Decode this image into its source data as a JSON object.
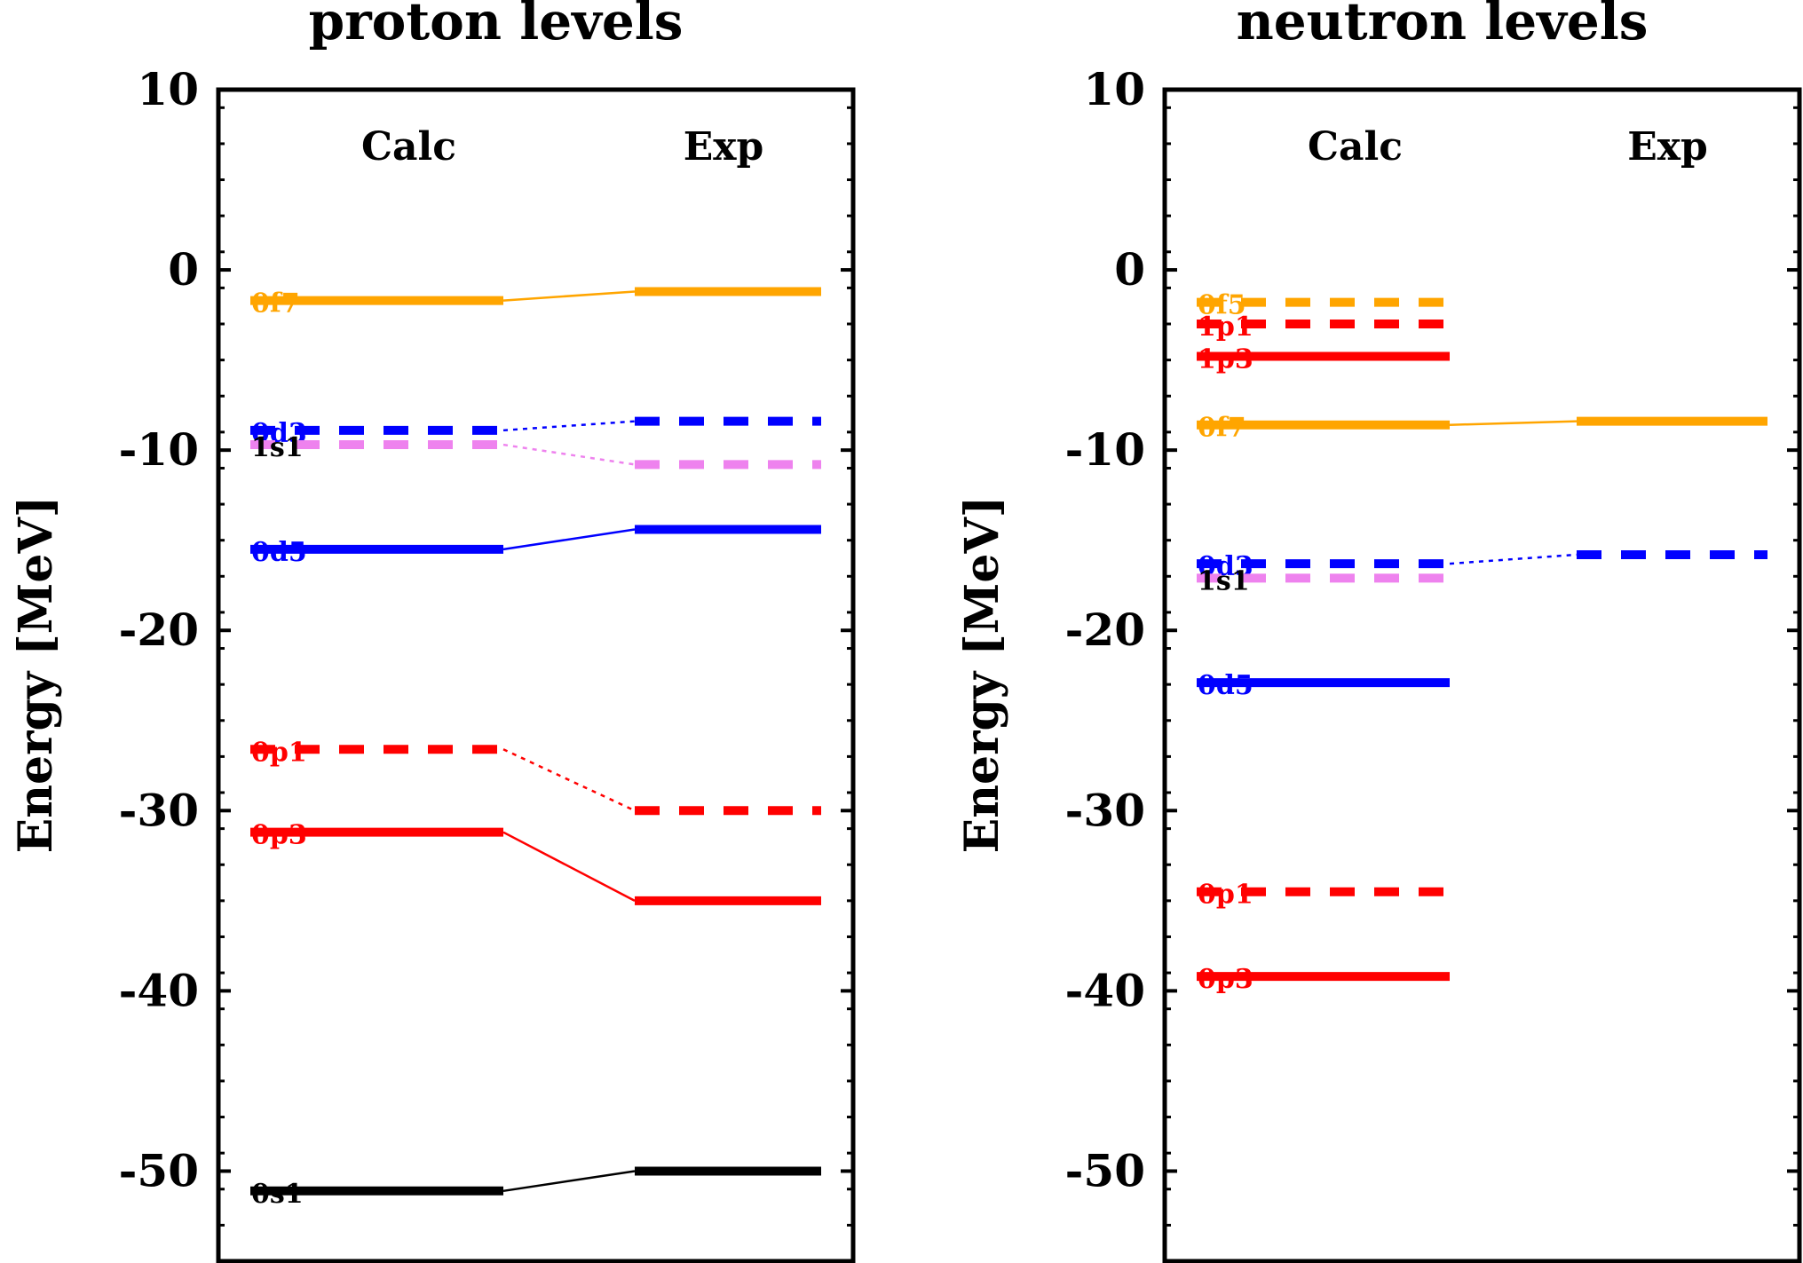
{
  "chart_data": [
    {
      "type": "level-scheme",
      "title": "proton levels",
      "ylabel": "Energy [MeV]",
      "ylim": [
        -55,
        10
      ],
      "yticks": [
        10,
        0,
        -10,
        -20,
        -30,
        -40,
        -50
      ],
      "columns": [
        "Calc",
        "Exp"
      ],
      "levels": [
        {
          "label": "0f7",
          "calc": -1.7,
          "exp": -1.2,
          "color": "#ffa500",
          "style": "solid"
        },
        {
          "label": "0d3",
          "calc": -8.9,
          "exp": -8.4,
          "color": "#0000ff",
          "style": "dashed"
        },
        {
          "label": "1s1",
          "calc": -9.7,
          "exp": -10.8,
          "color": "#ee82ee",
          "style": "dashed",
          "label_color": "#000000"
        },
        {
          "label": "0d5",
          "calc": -15.5,
          "exp": -14.4,
          "color": "#0000ff",
          "style": "solid"
        },
        {
          "label": "0p1",
          "calc": -26.6,
          "exp": -30.0,
          "color": "#ff0000",
          "style": "dashed"
        },
        {
          "label": "0p3",
          "calc": -31.2,
          "exp": -35.0,
          "color": "#ff0000",
          "style": "solid"
        },
        {
          "label": "0s1",
          "calc": -51.1,
          "exp": -50.0,
          "color": "#000000",
          "style": "solid"
        }
      ]
    },
    {
      "type": "level-scheme",
      "title": "neutron levels",
      "ylabel": "Energy [MeV]",
      "ylim": [
        -55,
        10
      ],
      "yticks": [
        10,
        0,
        -10,
        -20,
        -30,
        -40,
        -50
      ],
      "columns": [
        "Calc",
        "Exp"
      ],
      "levels": [
        {
          "label": "0f5",
          "calc": -1.8,
          "exp": null,
          "color": "#ffa500",
          "style": "dashed"
        },
        {
          "label": "1p1",
          "calc": -3.0,
          "exp": null,
          "color": "#ff0000",
          "style": "dashed"
        },
        {
          "label": "1p3",
          "calc": -4.8,
          "exp": null,
          "color": "#ff0000",
          "style": "solid"
        },
        {
          "label": "0f7",
          "calc": -8.6,
          "exp": -8.4,
          "color": "#ffa500",
          "style": "solid"
        },
        {
          "label": "0d3",
          "calc": -16.3,
          "exp": -15.8,
          "color": "#0000ff",
          "style": "dashed"
        },
        {
          "label": "1s1",
          "calc": -17.1,
          "exp": null,
          "color": "#ee82ee",
          "style": "dashed",
          "label_color": "#000000"
        },
        {
          "label": "0d5",
          "calc": -22.9,
          "exp": null,
          "color": "#0000ff",
          "style": "solid"
        },
        {
          "label": "0p1",
          "calc": -34.5,
          "exp": null,
          "color": "#ff0000",
          "style": "dashed"
        },
        {
          "label": "0p3",
          "calc": -39.2,
          "exp": null,
          "color": "#ff0000",
          "style": "solid"
        }
      ]
    }
  ]
}
